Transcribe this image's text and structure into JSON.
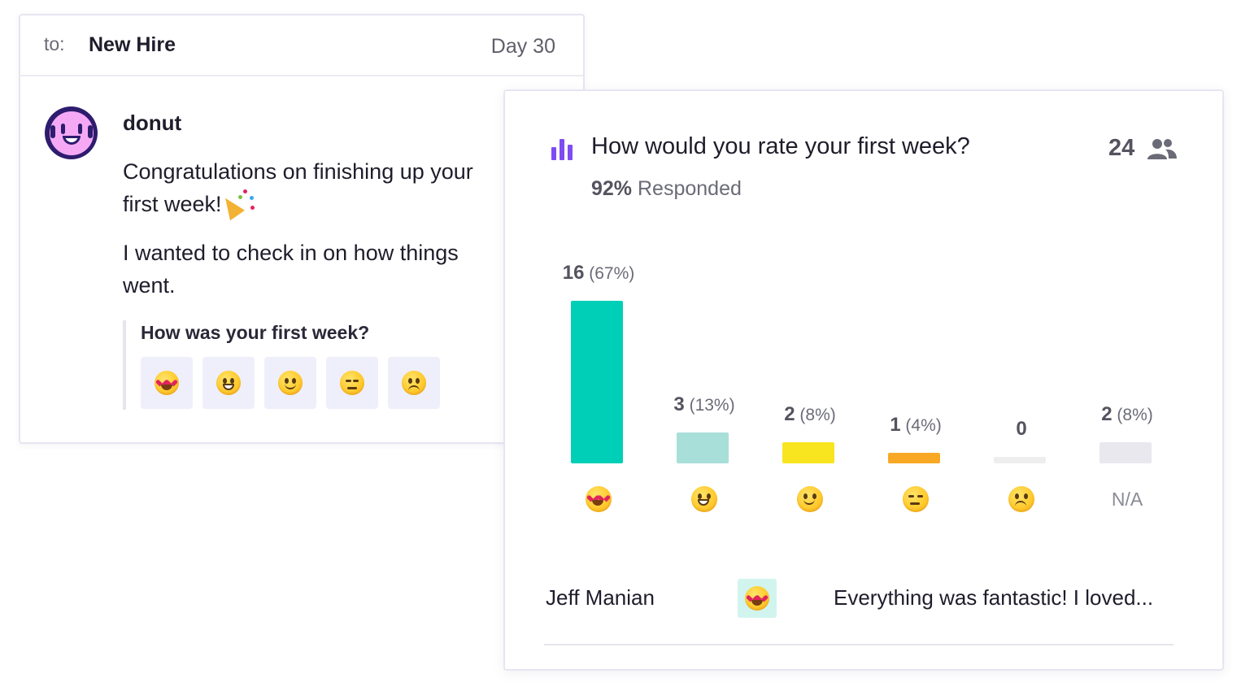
{
  "message": {
    "to_label": "to:",
    "to_value": "New Hire",
    "day": "Day 30",
    "sender": "donut",
    "paragraph1": "Congratulations on finishing up your first week!",
    "paragraph2": "I wanted to check in on how things went.",
    "question": "How was your first week?",
    "options": [
      "love-eyes-icon",
      "grinning-face-icon",
      "slight-smile-icon",
      "expressionless-icon",
      "frowning-face-icon"
    ]
  },
  "results": {
    "question": "How would you rate your first week?",
    "responded_pct": "92%",
    "responded_label": "Responded",
    "participant_count": "24",
    "colors": {
      "love": "#00cfb8",
      "grin": "#a8dfd9",
      "smile": "#f8e51f",
      "meh": "#f9a825",
      "sad": "#eeeeee",
      "na": "#e8e8ee",
      "accent": "#7e4cf2"
    },
    "response": {
      "name": "Jeff Manian",
      "text": "Everything was fantastic! I loved..."
    }
  },
  "chart_data": {
    "type": "bar",
    "categories": [
      "love-eyes",
      "grinning",
      "slight-smile",
      "expressionless",
      "frowning",
      "N/A"
    ],
    "values": [
      16,
      3,
      2,
      1,
      0,
      2
    ],
    "labels": [
      "16",
      "3",
      "2",
      "1",
      "0",
      "2"
    ],
    "percent_labels": [
      "(67%)",
      "(13%)",
      "(8%)",
      "(4%)",
      "",
      "(8%)"
    ],
    "na_label": "N/A",
    "ylim": [
      0,
      16
    ]
  }
}
